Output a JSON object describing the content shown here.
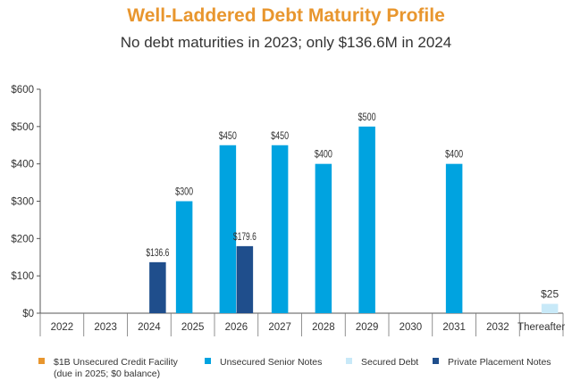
{
  "header": {
    "title": "Well-Laddered Debt Maturity Profile",
    "subtitle": "No debt maturities in 2023; only $136.6M in 2024"
  },
  "chart_data": {
    "type": "bar",
    "categories": [
      "2022",
      "2023",
      "2024",
      "2025",
      "2026",
      "2027",
      "2028",
      "2029",
      "2030",
      "2031",
      "2032",
      "Thereafter"
    ],
    "ylim": [
      0,
      600
    ],
    "yticks": [
      0,
      100,
      200,
      300,
      400,
      500,
      600
    ],
    "ytick_labels": [
      "$0",
      "$100",
      "$200",
      "$300",
      "$400",
      "$500",
      "$600"
    ],
    "series": [
      {
        "name": "$1B Unsecured Credit Facility",
        "note": "(due in 2025; $0 balance)",
        "color": "#e8962e",
        "values": [
          0,
          0,
          0,
          0,
          0,
          0,
          0,
          0,
          0,
          0,
          0,
          0
        ]
      },
      {
        "name": "Unsecured Senior Notes",
        "color": "#00a3e0",
        "values": [
          0,
          0,
          0,
          300,
          450,
          450,
          400,
          500,
          0,
          400,
          0,
          0
        ]
      },
      {
        "name": "Secured Debt",
        "color": "#c8e9f8",
        "values": [
          0,
          0,
          0,
          0,
          0,
          0,
          0,
          0,
          0,
          0,
          0,
          25
        ]
      },
      {
        "name": "Private Placement Notes",
        "color": "#1f4e8c",
        "values": [
          0,
          0,
          136.6,
          0,
          179.6,
          0,
          0,
          0,
          0,
          0,
          0,
          0
        ]
      }
    ],
    "bars": [
      {
        "category": "2024",
        "series": 3,
        "value": 136.6,
        "label": "$136.6"
      },
      {
        "category": "2025",
        "series": 1,
        "value": 300,
        "label": "$300"
      },
      {
        "category": "2026",
        "series": 1,
        "value": 450,
        "label": "$450"
      },
      {
        "category": "2026",
        "series": 3,
        "value": 179.6,
        "label": "$179.6"
      },
      {
        "category": "2027",
        "series": 1,
        "value": 450,
        "label": "$450"
      },
      {
        "category": "2028",
        "series": 1,
        "value": 400,
        "label": "$400"
      },
      {
        "category": "2029",
        "series": 1,
        "value": 500,
        "label": "$500"
      },
      {
        "category": "2031",
        "series": 1,
        "value": 400,
        "label": "$400"
      },
      {
        "category": "Thereafter",
        "series": 2,
        "value": 25,
        "label": "$25"
      }
    ],
    "legend_position": "bottom"
  }
}
